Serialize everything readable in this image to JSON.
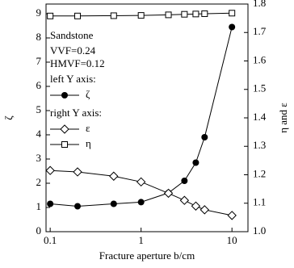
{
  "chart_data": {
    "type": "line",
    "x_label": "Fracture aperture b/cm",
    "y_label": "ζ",
    "y2_label": "η and ε",
    "annotations": [
      "Sandstone",
      "VVF=0.24",
      "HMVF=0.12",
      "left Y axis:",
      "right Y axis:"
    ],
    "x": [
      0.1,
      0.2,
      0.5,
      1,
      2,
      3,
      4,
      5,
      10
    ],
    "xscale": "log",
    "xlim": [
      0.09,
      15
    ],
    "xticks": [
      0.1,
      1,
      10
    ],
    "ylim": [
      0,
      9.4
    ],
    "yticks": [
      0,
      1,
      2,
      3,
      4,
      5,
      6,
      7,
      8,
      9
    ],
    "y2lim": [
      1.0,
      1.8
    ],
    "y2ticks": [
      {
        "value": 1,
        "label": "1.0"
      },
      1.1,
      1.2,
      1.3,
      1.4,
      1.5,
      1.6,
      1.7,
      1.8
    ],
    "series": [
      {
        "name": "ζ",
        "color": "#000000",
        "marker": "circle",
        "values": [
          1.15,
          1.05,
          1.15,
          1.22,
          1.6,
          2.1,
          2.85,
          3.9,
          8.45
        ]
      },
      {
        "name": "ε",
        "color": "#000000",
        "marker": "diamond",
        "axis": "y2",
        "values": [
          1.215,
          1.21,
          1.195,
          1.175,
          1.135,
          1.11,
          1.09,
          1.077,
          1.057
        ]
      },
      {
        "name": "η",
        "color": "#000000",
        "marker": "square",
        "axis": "y2",
        "values": [
          1.758,
          1.758,
          1.759,
          1.76,
          1.762,
          1.764,
          1.765,
          1.766,
          1.768
        ]
      }
    ]
  }
}
